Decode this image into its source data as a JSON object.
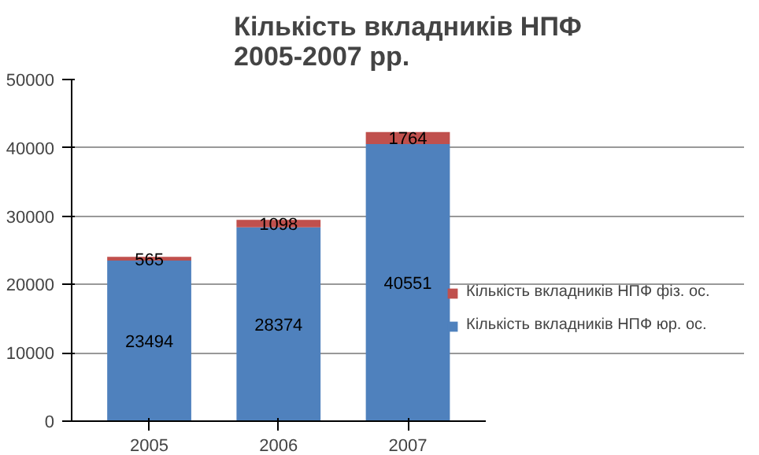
{
  "chart_data": {
    "type": "bar",
    "stacked": true,
    "title": "Кількість вкладників НПФ 2005-2007 рр.",
    "categories": [
      "2005",
      "2006",
      "2007"
    ],
    "series": [
      {
        "name": "Кількість вкладників НПФ юр. ос.",
        "color": "#4f81bd",
        "values": [
          23494,
          28374,
          40551
        ]
      },
      {
        "name": "Кількість вкладників НПФ фіз. ос.",
        "color": "#c0504d",
        "values": [
          565,
          1098,
          1764
        ]
      }
    ],
    "ylim": [
      0,
      50000
    ],
    "yticks": [
      0,
      10000,
      20000,
      30000,
      40000,
      50000
    ],
    "grid": "y",
    "legend": "right",
    "data_labels": true
  }
}
